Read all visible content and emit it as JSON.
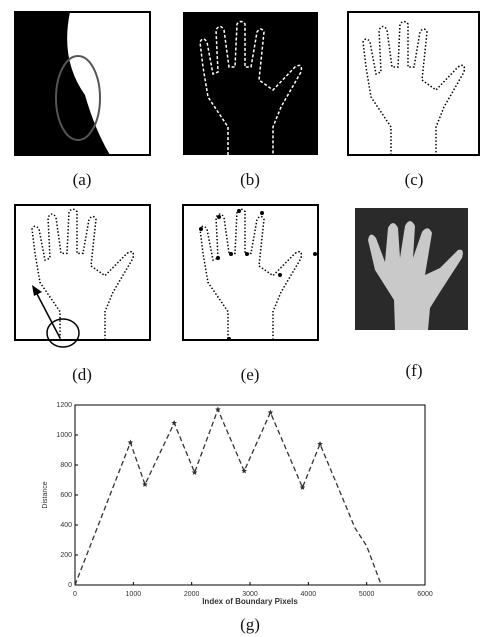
{
  "figure": {
    "panel_labels": [
      "(a)",
      "(b)",
      "(c)",
      "(d)",
      "(e)",
      "(f)"
    ]
  },
  "chart_data": {
    "type": "line",
    "panel_label": "(g)",
    "x_label": "Index of Boundary Pixels",
    "y_label": "Distance",
    "x": [
      0,
      950,
      1200,
      1700,
      2050,
      2450,
      2900,
      3350,
      3900,
      4200,
      4800,
      5000,
      5250
    ],
    "values": [
      0,
      950,
      670,
      1080,
      750,
      1170,
      760,
      1150,
      650,
      940,
      380,
      260,
      0
    ],
    "marker_x": [
      950,
      1200,
      1700,
      2050,
      2450,
      2900,
      3350,
      3900,
      4200
    ],
    "marker_values": [
      950,
      670,
      1080,
      750,
      1170,
      760,
      1150,
      650,
      940
    ],
    "color": "#333333",
    "xlim": [
      0,
      6000
    ],
    "ylim": [
      0,
      1200
    ],
    "xticks": [
      0,
      1000,
      2000,
      3000,
      4000,
      5000,
      6000
    ],
    "yticks": [
      0,
      200,
      400,
      600,
      800,
      1000,
      1200
    ]
  }
}
